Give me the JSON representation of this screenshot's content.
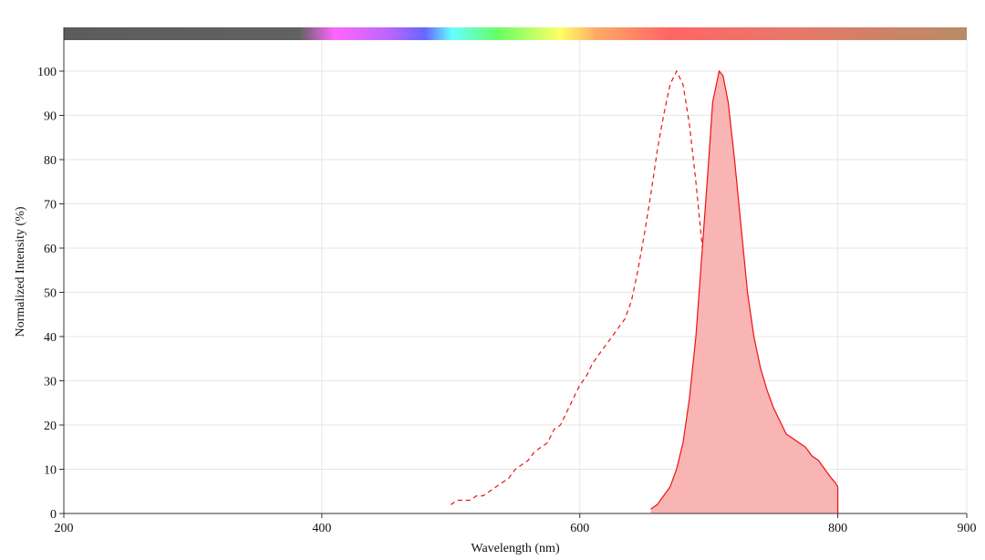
{
  "chart_data": {
    "type": "line",
    "title": "",
    "xlabel": "Wavelength (nm)",
    "ylabel": "Normalized Intensity (%)",
    "xlim": [
      200,
      900
    ],
    "ylim": [
      0,
      100
    ],
    "x_ticks": [
      "200",
      "400",
      "600",
      "800",
      "900"
    ],
    "y_ticks": [
      "0",
      "10",
      "20",
      "30",
      "40",
      "50",
      "60",
      "70",
      "80",
      "90",
      "100"
    ],
    "grid": true,
    "legend": "none",
    "spectrum_bar": true,
    "series": [
      {
        "style": "dashed",
        "color": "#ee1111",
        "points": [
          [
            500,
            2
          ],
          [
            505,
            3
          ],
          [
            510,
            3
          ],
          [
            515,
            3
          ],
          [
            520,
            4
          ],
          [
            525,
            4
          ],
          [
            530,
            5
          ],
          [
            535,
            6
          ],
          [
            540,
            7
          ],
          [
            545,
            8
          ],
          [
            550,
            10
          ],
          [
            555,
            11
          ],
          [
            560,
            12
          ],
          [
            565,
            14
          ],
          [
            570,
            15
          ],
          [
            575,
            16
          ],
          [
            580,
            19
          ],
          [
            585,
            20
          ],
          [
            590,
            23
          ],
          [
            595,
            26
          ],
          [
            600,
            29
          ],
          [
            605,
            31
          ],
          [
            610,
            34
          ],
          [
            615,
            36
          ],
          [
            620,
            38
          ],
          [
            625,
            40
          ],
          [
            630,
            42
          ],
          [
            635,
            44
          ],
          [
            640,
            48
          ],
          [
            645,
            55
          ],
          [
            650,
            63
          ],
          [
            655,
            72
          ],
          [
            660,
            82
          ],
          [
            665,
            90
          ],
          [
            670,
            97
          ],
          [
            675,
            100
          ],
          [
            680,
            97
          ],
          [
            685,
            88
          ],
          [
            690,
            75
          ],
          [
            695,
            60
          ],
          [
            700,
            46
          ],
          [
            705,
            33
          ],
          [
            710,
            22
          ],
          [
            715,
            13
          ],
          [
            720,
            7
          ],
          [
            725,
            4
          ],
          [
            730,
            2
          ],
          [
            735,
            1
          ],
          [
            740,
            1
          ],
          [
            745,
            0
          ]
        ]
      },
      {
        "style": "solid-filled",
        "color": "#ee1111",
        "fill": "#f9b4b4",
        "points": [
          [
            655,
            1
          ],
          [
            660,
            2
          ],
          [
            665,
            4
          ],
          [
            670,
            6
          ],
          [
            675,
            10
          ],
          [
            680,
            16
          ],
          [
            685,
            26
          ],
          [
            690,
            40
          ],
          [
            695,
            60
          ],
          [
            700,
            80
          ],
          [
            703,
            93
          ],
          [
            708,
            100
          ],
          [
            711,
            99
          ],
          [
            715,
            93
          ],
          [
            720,
            80
          ],
          [
            725,
            65
          ],
          [
            730,
            50
          ],
          [
            735,
            40
          ],
          [
            740,
            33
          ],
          [
            745,
            28
          ],
          [
            750,
            24
          ],
          [
            755,
            21
          ],
          [
            760,
            18
          ],
          [
            765,
            17
          ],
          [
            770,
            16
          ],
          [
            775,
            15
          ],
          [
            780,
            13
          ],
          [
            785,
            12
          ],
          [
            790,
            10
          ],
          [
            795,
            8
          ],
          [
            798,
            7
          ],
          [
            800,
            6
          ],
          [
            800,
            0
          ]
        ]
      }
    ]
  }
}
